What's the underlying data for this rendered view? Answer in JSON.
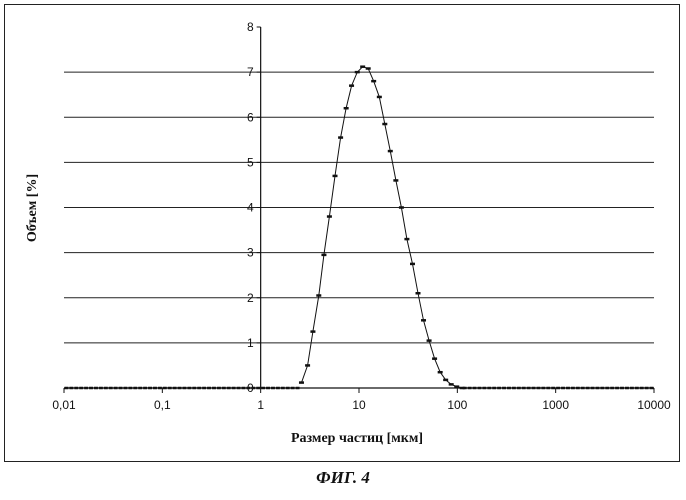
{
  "caption": "ФИГ. 4",
  "chart_data": {
    "type": "line",
    "title": "",
    "xlabel": "Размер частиц [мкм]",
    "ylabel": "Объем [%]",
    "xscale": "log",
    "xlim": [
      0.01,
      10000
    ],
    "ylim": [
      0,
      8
    ],
    "x_ticks": [
      0.01,
      0.1,
      1,
      10,
      100,
      1000,
      10000
    ],
    "x_tick_labels": [
      "0,01",
      "0,1",
      "1",
      "10",
      "100",
      "1000",
      "10000"
    ],
    "y_ticks": [
      0,
      1,
      2,
      3,
      4,
      5,
      6,
      7,
      8
    ],
    "y_tick_labels": [
      "0",
      "1",
      "2",
      "3",
      "4",
      "5",
      "6",
      "7",
      "8"
    ],
    "grid": "horizontal",
    "series": [
      {
        "color": "#111111",
        "marker": "dash",
        "x": [
          2.6,
          3.0,
          3.4,
          3.9,
          4.4,
          5.0,
          5.7,
          6.5,
          7.4,
          8.4,
          9.6,
          10.9,
          12.4,
          14.1,
          16.1,
          18.3,
          20.8,
          23.7,
          27.0,
          30.7,
          35.0,
          39.8,
          45.3,
          51.6,
          58.7,
          66.9,
          76.1,
          86.6,
          98.6,
          112.0
        ],
        "y": [
          0.12,
          0.5,
          1.25,
          2.05,
          2.95,
          3.8,
          4.7,
          5.55,
          6.2,
          6.7,
          7.0,
          7.12,
          7.08,
          6.8,
          6.45,
          5.85,
          5.25,
          4.6,
          4.0,
          3.3,
          2.75,
          2.1,
          1.5,
          1.05,
          0.65,
          0.35,
          0.18,
          0.08,
          0.03,
          0.0
        ]
      }
    ]
  }
}
